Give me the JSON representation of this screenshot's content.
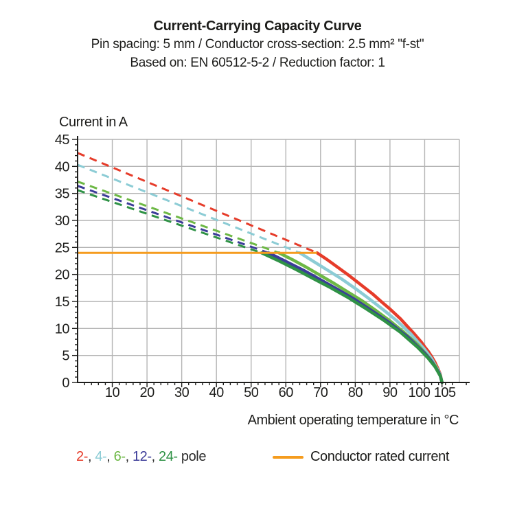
{
  "chart_data": {
    "type": "line",
    "title": "Current-Carrying Capacity Curve",
    "subtitle_spec": "Pin spacing: 5 mm / Conductor cross-section: 2.5 mm² \"f-st\"",
    "subtitle_standard": "Based on: EN 60512-5-2 / Reduction factor: 1",
    "xlabel": "Ambient operating temperature in °C",
    "ylabel": "Current in A",
    "xlim": [
      0,
      110
    ],
    "ylim": [
      0,
      45
    ],
    "x_major_ticks": [
      10,
      20,
      30,
      40,
      50,
      60,
      70,
      80,
      90,
      100,
      105
    ],
    "x_minor_step": 2,
    "y_major_ticks": [
      0,
      5,
      10,
      15,
      20,
      25,
      30,
      35,
      40,
      45
    ],
    "y_minor_step": 1,
    "x_grid": [
      10,
      20,
      30,
      40,
      50,
      60,
      70,
      80,
      90,
      100,
      110
    ],
    "y_grid": [
      5,
      10,
      15,
      20,
      25,
      30,
      35,
      40,
      45
    ],
    "grid": true,
    "legend_position": "bottom",
    "colors": {
      "grid": "#b4b4b4",
      "axis": "#1d1d1b"
    },
    "rated_current": {
      "label": "Conductor rated current",
      "value": 24,
      "x_start": 0,
      "x_end": 69,
      "color": "#f59c1e"
    },
    "series": [
      {
        "name": "2-pole",
        "color": "#e63c2a",
        "dashed_style": "derating",
        "dashed": [
          [
            0,
            42.5
          ],
          [
            69,
            24
          ]
        ],
        "solid": [
          [
            69,
            24
          ],
          [
            72,
            22.7
          ],
          [
            75,
            21.3
          ],
          [
            78,
            19.9
          ],
          [
            80,
            18.9
          ],
          [
            83,
            17.4
          ],
          [
            85,
            16.4
          ],
          [
            88,
            14.7
          ],
          [
            90,
            13.6
          ],
          [
            93,
            11.8
          ],
          [
            95,
            10.4
          ],
          [
            97,
            9.0
          ],
          [
            99,
            7.5
          ],
          [
            100,
            6.6
          ],
          [
            101,
            5.8
          ],
          [
            102,
            4.8
          ],
          [
            103,
            3.7
          ],
          [
            104,
            2.3
          ],
          [
            104.5,
            1.5
          ],
          [
            105,
            0
          ]
        ]
      },
      {
        "name": "4-pole",
        "color": "#8cccd5",
        "dashed_style": "derating",
        "dashed": [
          [
            0,
            40.3
          ],
          [
            64,
            24
          ]
        ],
        "solid": [
          [
            64,
            24
          ],
          [
            68,
            22.4
          ],
          [
            72,
            20.8
          ],
          [
            76,
            19.2
          ],
          [
            80,
            17.4
          ],
          [
            84,
            15.5
          ],
          [
            88,
            13.5
          ],
          [
            92,
            11.4
          ],
          [
            96,
            9.0
          ],
          [
            100,
            6.1
          ],
          [
            102,
            4.4
          ],
          [
            104,
            2.1
          ],
          [
            104.5,
            1.4
          ],
          [
            105,
            0
          ]
        ]
      },
      {
        "name": "6-pole",
        "color": "#6db845",
        "dashed_style": "derating",
        "dashed": [
          [
            0,
            37.2
          ],
          [
            58,
            24
          ]
        ],
        "solid": [
          [
            58,
            24
          ],
          [
            62,
            22.7
          ],
          [
            66,
            21.3
          ],
          [
            70,
            19.8
          ],
          [
            74,
            18.3
          ],
          [
            78,
            16.7
          ],
          [
            82,
            15.1
          ],
          [
            86,
            13.3
          ],
          [
            90,
            11.4
          ],
          [
            94,
            9.3
          ],
          [
            98,
            7.0
          ],
          [
            101,
            4.8
          ],
          [
            103,
            3.1
          ],
          [
            104.5,
            1.3
          ],
          [
            105,
            0
          ]
        ]
      },
      {
        "name": "12-pole",
        "color": "#3c3c99",
        "dashed_style": "derating",
        "dashed": [
          [
            0,
            36.4
          ],
          [
            55,
            24
          ]
        ],
        "solid": [
          [
            55,
            24
          ],
          [
            60,
            22.4
          ],
          [
            65,
            20.8
          ],
          [
            70,
            19.0
          ],
          [
            75,
            17.2
          ],
          [
            80,
            15.3
          ],
          [
            85,
            13.2
          ],
          [
            90,
            11.0
          ],
          [
            95,
            8.5
          ],
          [
            100,
            5.4
          ],
          [
            102,
            3.9
          ],
          [
            104,
            1.9
          ],
          [
            104.5,
            1.2
          ],
          [
            105,
            0
          ]
        ]
      },
      {
        "name": "24-pole",
        "color": "#2f9246",
        "dashed_style": "derating",
        "dashed": [
          [
            0,
            35.6
          ],
          [
            53,
            24
          ]
        ],
        "solid": [
          [
            53,
            24
          ],
          [
            58,
            22.5
          ],
          [
            63,
            20.9
          ],
          [
            68,
            19.2
          ],
          [
            73,
            17.5
          ],
          [
            78,
            15.7
          ],
          [
            83,
            13.7
          ],
          [
            88,
            11.6
          ],
          [
            93,
            9.3
          ],
          [
            98,
            6.5
          ],
          [
            101,
            4.5
          ],
          [
            103,
            2.9
          ],
          [
            104.5,
            1.2
          ],
          [
            105,
            0
          ]
        ]
      }
    ]
  },
  "legend": {
    "pole_items": [
      {
        "label": "2-",
        "color": "#e63c2a"
      },
      {
        "label": "4-",
        "color": "#8cccd5"
      },
      {
        "label": "6-",
        "color": "#6db845"
      },
      {
        "label": "12-",
        "color": "#3c3c99"
      },
      {
        "label": "24-",
        "color": "#2f9246"
      }
    ],
    "separator": ", ",
    "suffix": " pole",
    "rated_label": "Conductor rated current"
  }
}
